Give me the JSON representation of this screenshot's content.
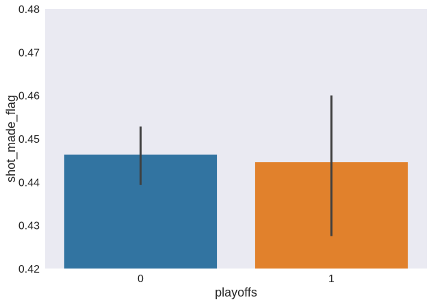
{
  "chart_data": {
    "type": "bar",
    "title": "",
    "xlabel": "playoffs",
    "ylabel": "shot_made_flag",
    "categories": [
      "0",
      "1"
    ],
    "values": [
      0.4463,
      0.4446
    ],
    "error_bars": [
      {
        "low": 0.4393,
        "high": 0.4528
      },
      {
        "low": 0.4275,
        "high": 0.46
      }
    ],
    "ylim": [
      0.42,
      0.48
    ],
    "yticks": [
      "0.42",
      "0.43",
      "0.44",
      "0.45",
      "0.46",
      "0.47",
      "0.48"
    ],
    "grid": false,
    "legend": "none",
    "colors": {
      "background": "#eaeaf2",
      "bars": [
        "#3274a1",
        "#e1812c"
      ],
      "error_bar": "#3f3f3f"
    }
  }
}
